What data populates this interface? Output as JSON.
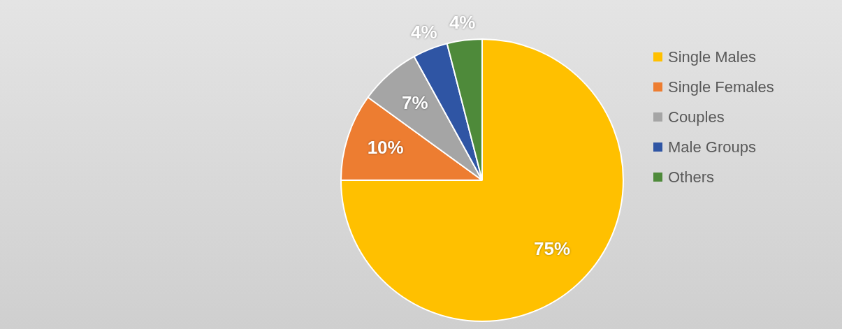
{
  "chart_data": {
    "type": "pie",
    "categories": [
      "Single Males",
      "Single Females",
      "Couples",
      "Male Groups",
      "Others"
    ],
    "values": [
      75,
      10,
      7,
      4,
      4
    ],
    "value_labels": [
      "75%",
      "10%",
      "7%",
      "4%",
      "4%"
    ],
    "colors": [
      "#ffc000",
      "#ed7d31",
      "#a5a5a5",
      "#2f55a4",
      "#4e8a3a"
    ],
    "data_labels": true,
    "legend": "right"
  }
}
